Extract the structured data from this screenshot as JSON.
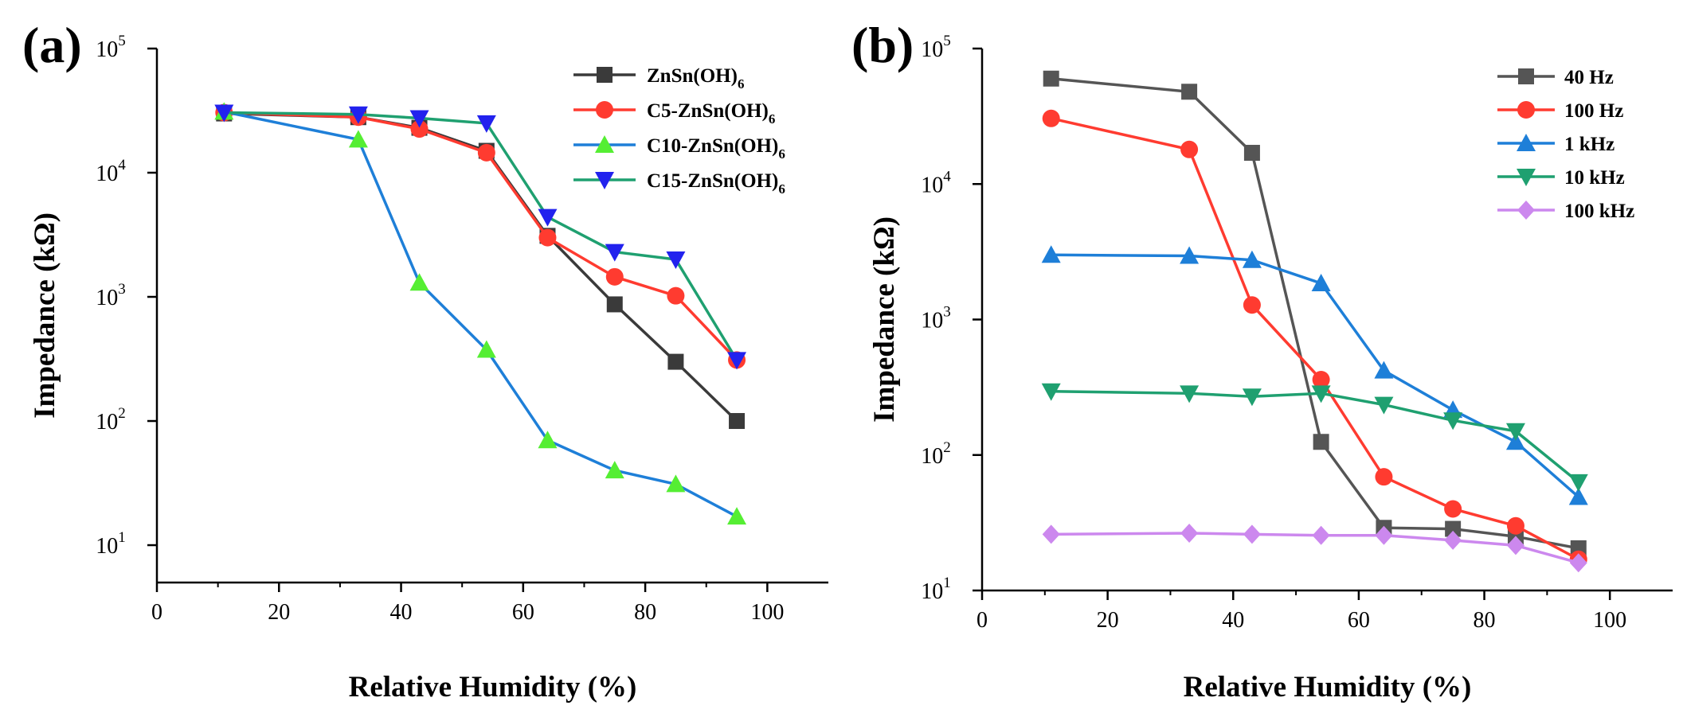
{
  "chart_data": [
    {
      "type": "line",
      "panel_label": "(a)",
      "xlabel": "Relative Humidity (%)",
      "ylabel": "Impedance (kΩ)",
      "xlim": [
        0,
        110
      ],
      "ylim": [
        5,
        100000
      ],
      "yscale": "log",
      "x_ticks": [
        0,
        20,
        40,
        60,
        80,
        100
      ],
      "y_ticks": [
        {
          "value": 10,
          "base": "10",
          "exp": "1"
        },
        {
          "value": 100,
          "base": "10",
          "exp": "2"
        },
        {
          "value": 1000,
          "base": "10",
          "exp": "3"
        },
        {
          "value": 10000,
          "base": "10",
          "exp": "4"
        },
        {
          "value": 100000,
          "base": "10",
          "exp": "5"
        }
      ],
      "legend_position": "top-right",
      "x": [
        11,
        33,
        43,
        54,
        64,
        75,
        85,
        95
      ],
      "series": [
        {
          "name": "ZnSn(OH)6",
          "label": "ZnSn(OH)",
          "sub": "6",
          "color": "#3a3a3a",
          "marker": "square",
          "values": [
            30000,
            28000,
            23000,
            15000,
            3100,
            870,
            300,
            100
          ]
        },
        {
          "name": "C5-ZnSn(OH)6",
          "label": "C5-ZnSn(OH)",
          "sub": "6",
          "color": "#ff3b30",
          "marker": "circle",
          "values": [
            30500,
            28000,
            22500,
            14500,
            3000,
            1450,
            1020,
            310
          ]
        },
        {
          "name": "C10-ZnSn(OH)6",
          "label": "C10-ZnSn(OH)",
          "sub": "6",
          "color": "#1e7fd8",
          "marker": "triangle-up",
          "marker_color": "#55ee33",
          "values": [
            31000,
            18500,
            1300,
            375,
            70,
            40,
            31,
            17
          ]
        },
        {
          "name": "C15-ZnSn(OH)6",
          "label": "C15-ZnSn(OH)",
          "sub": "6",
          "color": "#1fa070",
          "marker": "triangle-down",
          "marker_color": "#2222ee",
          "values": [
            30500,
            29500,
            27500,
            25000,
            4400,
            2300,
            2000,
            310
          ]
        }
      ]
    },
    {
      "type": "line",
      "panel_label": "(b)",
      "xlabel": "Relative Humidity (%)",
      "ylabel": "Impedance (kΩ)",
      "xlim": [
        0,
        110
      ],
      "ylim": [
        10,
        100000
      ],
      "yscale": "log",
      "x_ticks": [
        0,
        20,
        40,
        60,
        80,
        100
      ],
      "y_ticks": [
        {
          "value": 10,
          "base": "10",
          "exp": "1"
        },
        {
          "value": 100,
          "base": "10",
          "exp": "2"
        },
        {
          "value": 1000,
          "base": "10",
          "exp": "3"
        },
        {
          "value": 10000,
          "base": "10",
          "exp": "4"
        },
        {
          "value": 100000,
          "base": "10",
          "exp": "5"
        }
      ],
      "legend_position": "top-right",
      "x": [
        11,
        33,
        43,
        54,
        64,
        75,
        85,
        95
      ],
      "series": [
        {
          "name": "40 Hz",
          "label": "40 Hz",
          "sub": "",
          "color": "#555555",
          "marker": "square",
          "values": [
            60000,
            48000,
            17000,
            125,
            29,
            28.5,
            25,
            20.5
          ]
        },
        {
          "name": "100 Hz",
          "label": "100 Hz",
          "sub": "",
          "color": "#ff3b30",
          "marker": "circle",
          "values": [
            30500,
            18000,
            1280,
            360,
            69,
            40,
            30,
            17
          ]
        },
        {
          "name": "1 kHz",
          "label": "1 kHz",
          "sub": "",
          "color": "#1e7fd8",
          "marker": "triangle-up",
          "values": [
            3000,
            2950,
            2750,
            1850,
            420,
            215,
            125,
            49
          ]
        },
        {
          "name": "10 kHz",
          "label": "10 kHz",
          "sub": "",
          "color": "#1fa070",
          "marker": "triangle-down",
          "values": [
            295,
            285,
            270,
            285,
            235,
            180,
            150,
            63
          ]
        },
        {
          "name": "100 kHz",
          "label": "100 kHz",
          "sub": "",
          "color": "#cc88ee",
          "marker": "diamond",
          "values": [
            26,
            26.5,
            26,
            25.5,
            25.5,
            23.5,
            21.5,
            16
          ]
        }
      ]
    }
  ]
}
